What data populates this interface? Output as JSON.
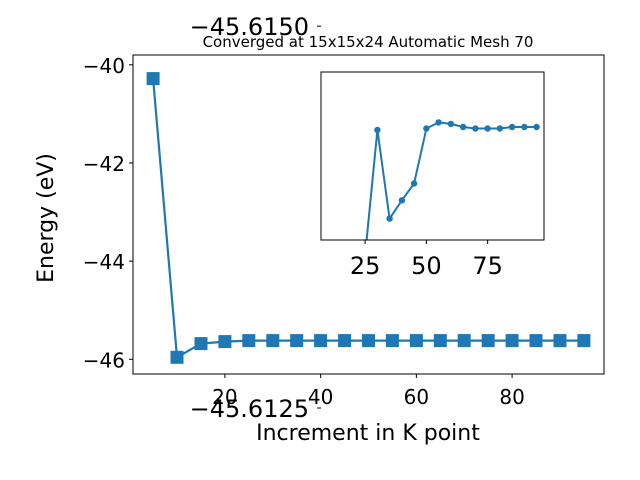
{
  "chart_data": [
    {
      "type": "line",
      "title": "Converged at 15x15x24 Automatic Mesh 70",
      "xlabel": "Increment in K point",
      "ylabel": "Energy (eV)",
      "xlim": [
        0.8,
        99.2
      ],
      "ylim": [
        -46.3,
        -39.8
      ],
      "xticks": [
        20,
        40,
        60,
        80
      ],
      "yticks": [
        -40,
        -42,
        -44,
        -46
      ],
      "x_tick_labels": [
        "20",
        "40",
        "60",
        "80"
      ],
      "y_tick_labels": [
        "−40",
        "−42",
        "−44",
        "−46"
      ],
      "marker": "square",
      "color": "#1f77b4",
      "grid": false,
      "series": [
        {
          "x": [
            5,
            10,
            15,
            20,
            25,
            30,
            35,
            40,
            45,
            50,
            55,
            60,
            65,
            70,
            75,
            80,
            85,
            90,
            95
          ],
          "y": [
            -40.28,
            -45.96,
            -45.68,
            -45.64,
            -45.62,
            -45.62,
            -45.62,
            -45.62,
            -45.62,
            -45.62,
            -45.62,
            -45.62,
            -45.62,
            -45.62,
            -45.62,
            -45.62,
            -45.62,
            -45.62,
            -45.62
          ]
        }
      ]
    },
    {
      "type": "line",
      "title": "",
      "xlabel": "",
      "ylabel": "",
      "xlim": [
        7,
        98
      ],
      "ylim": [
        -45.6136,
        -45.6147
      ],
      "xticks": [
        25,
        50,
        75
      ],
      "yticks": [
        -45.615,
        -45.6125
      ],
      "x_tick_labels": [
        "25",
        "50",
        "75"
      ],
      "y_tick_labels": [
        "−45.6150",
        "−45.6125"
      ],
      "marker": "circle",
      "color": "#1f77b4",
      "grid": false,
      "series": [
        {
          "x": [
            25,
            30,
            35,
            40,
            45,
            50,
            55,
            60,
            65,
            70,
            75,
            80,
            85,
            90,
            95
          ],
          "y": [
            -45.6135,
            -45.61432,
            -45.61374,
            -45.61386,
            -45.61397,
            -45.61433,
            -45.61437,
            -45.61436,
            -45.61434,
            -45.61433,
            -45.61433,
            -45.61433,
            -45.61434,
            -45.61434,
            -45.61434
          ]
        }
      ]
    }
  ]
}
